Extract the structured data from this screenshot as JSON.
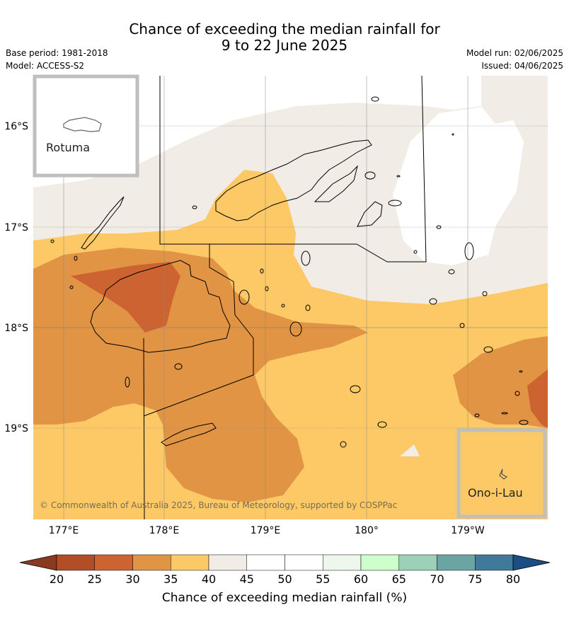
{
  "header": {
    "title_line1": "Chance of exceeding the median rainfall for",
    "title_line2": "9 to 22 June 2025",
    "base_period": "Base period: 1981-2018",
    "model": "Model: ACCESS-S2",
    "model_run": "Model run: 02/06/2025",
    "issued": "Issued: 04/06/2025"
  },
  "map": {
    "lat_labels": [
      "16°S",
      "17°S",
      "18°S",
      "19°S"
    ],
    "lon_labels": [
      "177°E",
      "178°E",
      "179°E",
      "180°",
      "179°W"
    ],
    "insets": {
      "rotuma": "Rotuma",
      "ono_i_lau": "Ono-i-Lau"
    },
    "copyright": "© Commonwealth of Australia 2025, Bureau of Meteorology, supported by COSPPac"
  },
  "colorbar": {
    "title": "Chance of exceeding median rainfall (%)",
    "labels": [
      "20",
      "25",
      "30",
      "35",
      "40",
      "45",
      "50",
      "55",
      "60",
      "65",
      "70",
      "75",
      "80"
    ],
    "colors": [
      "#8b3a20",
      "#b34d26",
      "#cd6330",
      "#e09444",
      "#fdc966",
      "#f1ece6",
      "#ffffff",
      "#ffffff",
      "#eef7ec",
      "#ccffcc",
      "#9dd1b7",
      "#6aa5a4",
      "#3f7a9b",
      "#1b4f84"
    ]
  }
}
